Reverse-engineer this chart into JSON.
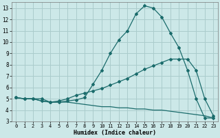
{
  "xlabel": "Humidex (Indice chaleur)",
  "bg_color": "#cce8e8",
  "grid_color": "#aacccc",
  "line_color": "#1a6b6b",
  "xlim": [
    -0.5,
    23.5
  ],
  "ylim": [
    3,
    13.5
  ],
  "yticks": [
    3,
    4,
    5,
    6,
    7,
    8,
    9,
    10,
    11,
    12,
    13
  ],
  "xticks": [
    0,
    1,
    2,
    3,
    4,
    5,
    6,
    7,
    8,
    9,
    10,
    11,
    12,
    13,
    14,
    15,
    16,
    17,
    18,
    19,
    20,
    21,
    22,
    23
  ],
  "line1_x": [
    0,
    1,
    2,
    3,
    4,
    5,
    6,
    7,
    8,
    9,
    10,
    11,
    12,
    13,
    14,
    15,
    16,
    17,
    18,
    19,
    20,
    21,
    22,
    23
  ],
  "line1_y": [
    5.1,
    5.0,
    5.0,
    5.0,
    4.7,
    4.7,
    4.8,
    4.9,
    5.1,
    6.3,
    7.5,
    9.0,
    10.2,
    11.0,
    12.5,
    13.2,
    13.0,
    12.2,
    10.8,
    9.5,
    7.5,
    5.0,
    3.3,
    3.3
  ],
  "line2_x": [
    0,
    1,
    2,
    3,
    4,
    5,
    6,
    7,
    8,
    9,
    10,
    11,
    12,
    13,
    14,
    15,
    16,
    17,
    18,
    19,
    20,
    21,
    22,
    23
  ],
  "line2_y": [
    5.1,
    5.0,
    5.0,
    4.8,
    4.7,
    4.8,
    5.0,
    5.3,
    5.5,
    5.7,
    5.9,
    6.2,
    6.5,
    6.8,
    7.2,
    7.6,
    7.9,
    8.2,
    8.5,
    8.5,
    8.5,
    7.5,
    5.0,
    3.5
  ],
  "line3_x": [
    0,
    1,
    2,
    3,
    4,
    5,
    6,
    7,
    8,
    9,
    10,
    11,
    12,
    13,
    14,
    15,
    16,
    17,
    18,
    19,
    20,
    21,
    22,
    23
  ],
  "line3_y": [
    5.1,
    5.0,
    5.0,
    4.8,
    4.7,
    4.7,
    4.7,
    4.6,
    4.5,
    4.4,
    4.3,
    4.3,
    4.2,
    4.2,
    4.1,
    4.1,
    4.0,
    4.0,
    3.9,
    3.8,
    3.7,
    3.6,
    3.5,
    3.3
  ],
  "xlabel_fontsize": 6,
  "tick_fontsize": 5
}
